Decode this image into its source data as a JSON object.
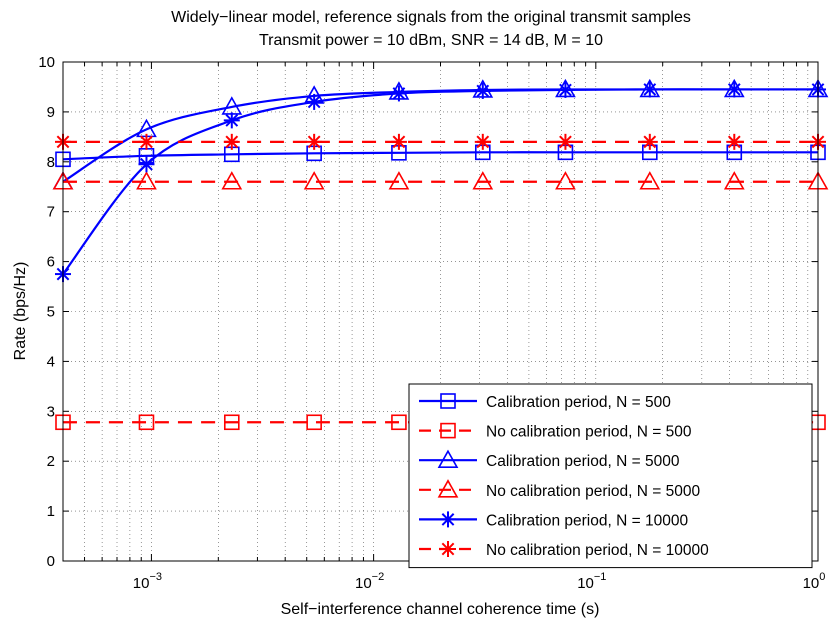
{
  "chart_data": {
    "type": "line",
    "title": "Widely−linear model, reference signals from the original transmit samples",
    "subtitle": "Transmit power = 10 dBm, SNR = 14 dB, M = 10",
    "xlabel": "Self−interference channel coherence time (s)",
    "ylabel": "Rate (bps/Hz)",
    "xscale": "log",
    "xlim": [
      0.0004,
      1
    ],
    "ylim": [
      0,
      10
    ],
    "x_tick_exponents": [
      "−3",
      "−2",
      "−1",
      "0"
    ],
    "y_ticks": [
      "0",
      "1",
      "2",
      "3",
      "4",
      "5",
      "6",
      "7",
      "8",
      "9",
      "10"
    ],
    "grid": true,
    "legend_position": "bottom-right",
    "x": [
      0.0004,
      0.00095,
      0.0023,
      0.0054,
      0.013,
      0.031,
      0.073,
      0.175,
      0.42,
      1.0
    ],
    "series": [
      {
        "name": "Calibration period, N = 500",
        "color": "#0000ff",
        "dash": "solid",
        "marker": "square",
        "values": [
          8.05,
          8.12,
          8.15,
          8.17,
          8.18,
          8.19,
          8.19,
          8.19,
          8.19,
          8.19
        ]
      },
      {
        "name": "No calibration period, N = 500",
        "color": "#ff0000",
        "dash": "dashed",
        "marker": "square",
        "values": [
          2.78,
          2.78,
          2.78,
          2.78,
          2.78,
          2.78,
          2.78,
          2.78,
          2.78,
          2.78
        ]
      },
      {
        "name": "Calibration period, N = 5000",
        "color": "#0000ff",
        "dash": "solid",
        "marker": "triangle",
        "values": [
          7.6,
          8.65,
          9.1,
          9.32,
          9.4,
          9.44,
          9.45,
          9.45,
          9.45,
          9.45
        ]
      },
      {
        "name": "No calibration period, N = 5000",
        "color": "#ff0000",
        "dash": "dashed",
        "marker": "triangle",
        "values": [
          7.6,
          7.6,
          7.6,
          7.6,
          7.6,
          7.6,
          7.6,
          7.6,
          7.6,
          7.6
        ]
      },
      {
        "name": "Calibration period, N = 10000",
        "color": "#0000ff",
        "dash": "solid",
        "marker": "asterisk",
        "values": [
          5.75,
          7.95,
          8.83,
          9.2,
          9.37,
          9.42,
          9.44,
          9.45,
          9.45,
          9.45
        ]
      },
      {
        "name": "No calibration period, N = 10000",
        "color": "#ff0000",
        "dash": "dashed",
        "marker": "asterisk",
        "values": [
          8.4,
          8.4,
          8.4,
          8.4,
          8.4,
          8.4,
          8.4,
          8.4,
          8.4,
          8.4
        ]
      }
    ]
  }
}
